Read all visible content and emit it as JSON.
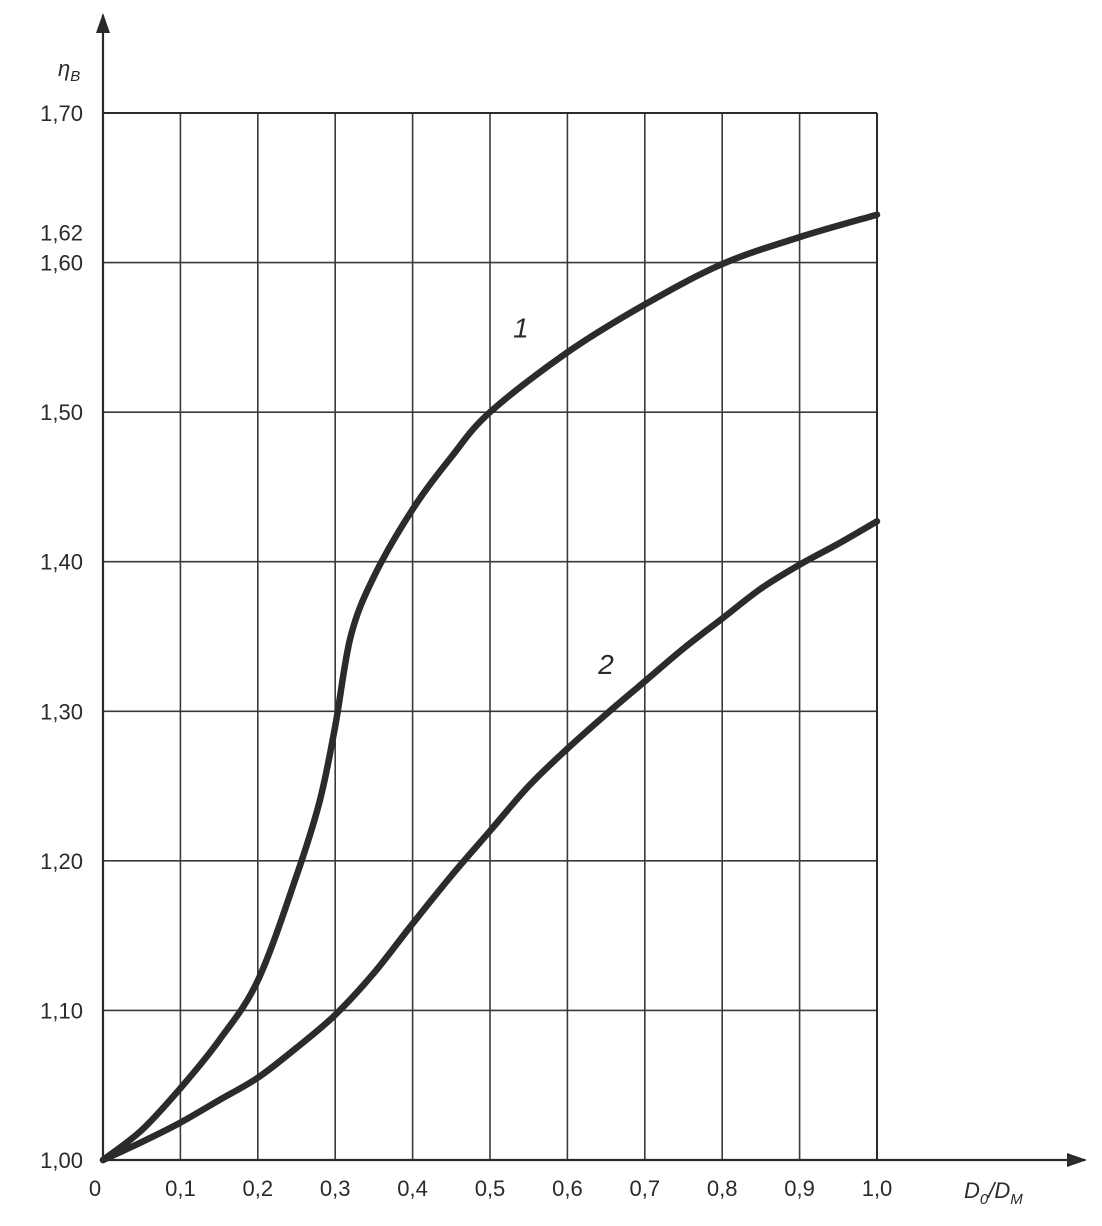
{
  "chart_data": {
    "type": "line",
    "title": "",
    "xlabel": {
      "main": "D",
      "sub0": "0",
      "slash": "/D",
      "sub1": "M"
    },
    "ylabel": {
      "main": "η",
      "sub": "B"
    },
    "xlim": [
      0,
      1.0
    ],
    "ylim": [
      1.0,
      1.7
    ],
    "grid": true,
    "x_ticks": [
      {
        "value": 0,
        "label": "0"
      },
      {
        "value": 0.1,
        "label": "0,1"
      },
      {
        "value": 0.2,
        "label": "0,2"
      },
      {
        "value": 0.3,
        "label": "0,3"
      },
      {
        "value": 0.4,
        "label": "0,4"
      },
      {
        "value": 0.5,
        "label": "0,5"
      },
      {
        "value": 0.6,
        "label": "0,6"
      },
      {
        "value": 0.7,
        "label": "0,7"
      },
      {
        "value": 0.8,
        "label": "0,8"
      },
      {
        "value": 0.9,
        "label": "0,9"
      },
      {
        "value": 1.0,
        "label": "1,0"
      }
    ],
    "y_ticks": [
      {
        "value": 1.0,
        "label": "1,00"
      },
      {
        "value": 1.1,
        "label": "1,10"
      },
      {
        "value": 1.2,
        "label": "1,20"
      },
      {
        "value": 1.3,
        "label": "1,30"
      },
      {
        "value": 1.4,
        "label": "1,40"
      },
      {
        "value": 1.5,
        "label": "1,50"
      },
      {
        "value": 1.6,
        "label": "1,60"
      },
      {
        "value": 1.62,
        "label": "1,62"
      },
      {
        "value": 1.7,
        "label": "1,70"
      }
    ],
    "y_grid_values": [
      1.1,
      1.2,
      1.3,
      1.4,
      1.5,
      1.6
    ],
    "series": [
      {
        "name": "1",
        "label_at": [
          0.54,
          1.55
        ],
        "x": [
          0,
          0.05,
          0.1,
          0.15,
          0.2,
          0.25,
          0.28,
          0.3,
          0.32,
          0.35,
          0.4,
          0.45,
          0.5,
          0.6,
          0.7,
          0.8,
          0.9,
          1.0
        ],
        "y": [
          1.0,
          1.02,
          1.048,
          1.08,
          1.12,
          1.19,
          1.24,
          1.29,
          1.35,
          1.39,
          1.435,
          1.47,
          1.5,
          1.54,
          1.572,
          1.599,
          1.617,
          1.632
        ]
      },
      {
        "name": "2",
        "label_at": [
          0.65,
          1.325
        ],
        "x": [
          0,
          0.05,
          0.1,
          0.15,
          0.2,
          0.25,
          0.3,
          0.35,
          0.4,
          0.45,
          0.5,
          0.55,
          0.6,
          0.65,
          0.7,
          0.75,
          0.8,
          0.85,
          0.9,
          0.95,
          1.0
        ],
        "y": [
          1.0,
          1.012,
          1.025,
          1.04,
          1.055,
          1.075,
          1.097,
          1.125,
          1.158,
          1.19,
          1.22,
          1.25,
          1.275,
          1.298,
          1.32,
          1.342,
          1.362,
          1.382,
          1.398,
          1.412,
          1.427
        ]
      }
    ],
    "colors": {
      "curve": "#2b2b2b",
      "grid": "#3a3a3a",
      "text": "#2a2a2a",
      "background": "#ffffff"
    }
  }
}
